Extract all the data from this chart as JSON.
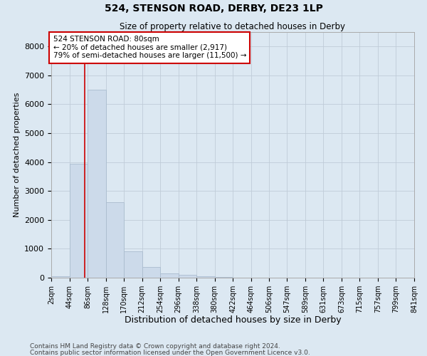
{
  "title": "524, STENSON ROAD, DERBY, DE23 1LP",
  "subtitle": "Size of property relative to detached houses in Derby",
  "xlabel": "Distribution of detached houses by size in Derby",
  "ylabel": "Number of detached properties",
  "property_size": 80,
  "property_label": "524 STENSON ROAD: 80sqm",
  "annotation_line1": "← 20% of detached houses are smaller (2,917)",
  "annotation_line2": "79% of semi-detached houses are larger (11,500) →",
  "footer_line1": "Contains HM Land Registry data © Crown copyright and database right 2024.",
  "footer_line2": "Contains public sector information licensed under the Open Government Licence v3.0.",
  "bin_edges": [
    2,
    44,
    86,
    128,
    170,
    212,
    254,
    296,
    338,
    380,
    422,
    464,
    506,
    547,
    589,
    631,
    673,
    715,
    757,
    799,
    841
  ],
  "bar_heights": [
    50,
    3950,
    6500,
    2600,
    900,
    380,
    150,
    110,
    55,
    20,
    5,
    2,
    1,
    0,
    0,
    0,
    0,
    0,
    0,
    0
  ],
  "bar_color": "#ccdaea",
  "bar_edgecolor": "#aabcce",
  "redline_color": "#cc0000",
  "annotation_box_edgecolor": "#cc0000",
  "annotation_bg": "#ffffff",
  "grid_color": "#c0ccd8",
  "background_color": "#dce8f2",
  "ylim": [
    0,
    8500
  ],
  "yticks": [
    0,
    1000,
    2000,
    3000,
    4000,
    5000,
    6000,
    7000,
    8000
  ]
}
